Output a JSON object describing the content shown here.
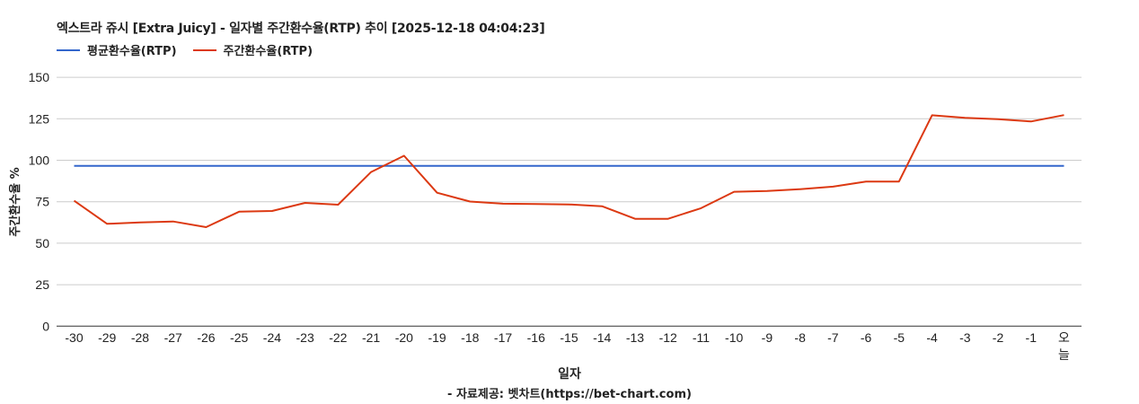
{
  "chart_data": {
    "type": "line",
    "title": "엑스트라 쥬시 [Extra Juicy] - 일자별 주간환수율(RTP) 추이 [2025-12-18 04:04:23]",
    "xlabel": "일자",
    "ylabel": "주간환수율 %",
    "credit": "- 자료제공: 벳차트(https://bet-chart.com)",
    "ylim": [
      0,
      150
    ],
    "yticks": [
      0,
      25,
      50,
      75,
      100,
      125,
      150
    ],
    "grid": true,
    "legend_position": "top-left",
    "categories": [
      "-30",
      "-29",
      "-28",
      "-27",
      "-26",
      "-25",
      "-24",
      "-23",
      "-22",
      "-21",
      "-20",
      "-19",
      "-18",
      "-17",
      "-16",
      "-15",
      "-14",
      "-13",
      "-12",
      "-11",
      "-10",
      "-9",
      "-8",
      "-7",
      "-6",
      "-5",
      "-4",
      "-3",
      "-2",
      "-1",
      "오늘"
    ],
    "series": [
      {
        "name": "평균환수율(RTP)",
        "color": "#3366cc",
        "values": [
          96.6,
          96.6,
          96.6,
          96.6,
          96.6,
          96.6,
          96.6,
          96.6,
          96.6,
          96.6,
          96.6,
          96.6,
          96.6,
          96.6,
          96.6,
          96.6,
          96.6,
          96.6,
          96.6,
          96.6,
          96.6,
          96.6,
          96.6,
          96.6,
          96.6,
          96.6,
          96.6,
          96.6,
          96.6,
          96.6,
          96.6
        ]
      },
      {
        "name": "주간환수율(RTP)",
        "color": "#dc3912",
        "values": [
          75.6,
          61.7,
          62.5,
          63.1,
          59.7,
          69.0,
          69.4,
          74.3,
          73.2,
          92.9,
          102.7,
          80.4,
          75.1,
          73.8,
          73.6,
          73.4,
          72.3,
          64.7,
          64.7,
          71.1,
          81.0,
          81.5,
          82.6,
          84.1,
          87.2,
          87.2,
          127.1,
          125.6,
          124.8,
          123.4,
          127.2
        ]
      }
    ]
  }
}
